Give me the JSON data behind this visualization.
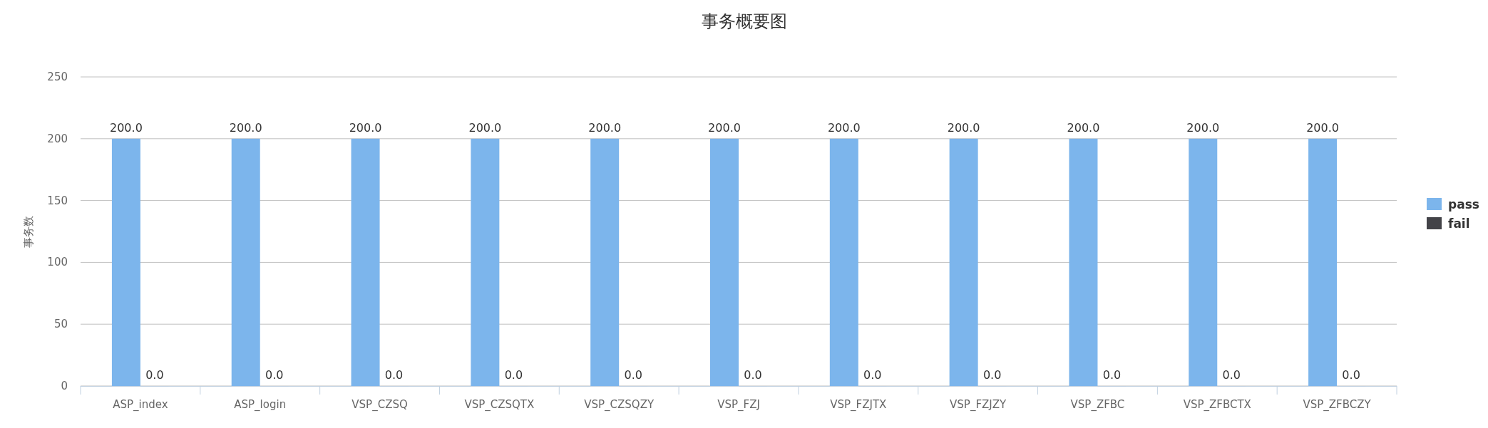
{
  "chart_data": {
    "type": "bar",
    "title": "事务概要图",
    "ylabel": "事务数",
    "categories": [
      "ASP_index",
      "ASP_login",
      "VSP_CZSQ",
      "VSP_CZSQTX",
      "VSP_CZSQZY",
      "VSP_FZJ",
      "VSP_FZJTX",
      "VSP_FZJZY",
      "VSP_ZFBC",
      "VSP_ZFBCTX",
      "VSP_ZFBCZY"
    ],
    "series": [
      {
        "name": "pass",
        "color": "#7cb5ec",
        "values": [
          200,
          200,
          200,
          200,
          200,
          200,
          200,
          200,
          200,
          200,
          200
        ],
        "value_labels": [
          "200.0",
          "200.0",
          "200.0",
          "200.0",
          "200.0",
          "200.0",
          "200.0",
          "200.0",
          "200.0",
          "200.0",
          "200.0"
        ]
      },
      {
        "name": "fail",
        "color": "#434348",
        "values": [
          0,
          0,
          0,
          0,
          0,
          0,
          0,
          0,
          0,
          0,
          0
        ],
        "value_labels": [
          "0.0",
          "0.0",
          "0.0",
          "0.0",
          "0.0",
          "0.0",
          "0.0",
          "0.0",
          "0.0",
          "0.0",
          "0.0"
        ]
      }
    ],
    "ylim": [
      0,
      250
    ],
    "yticks": [
      0,
      50,
      100,
      150,
      200,
      250
    ],
    "grid": "y",
    "legend": "right"
  }
}
